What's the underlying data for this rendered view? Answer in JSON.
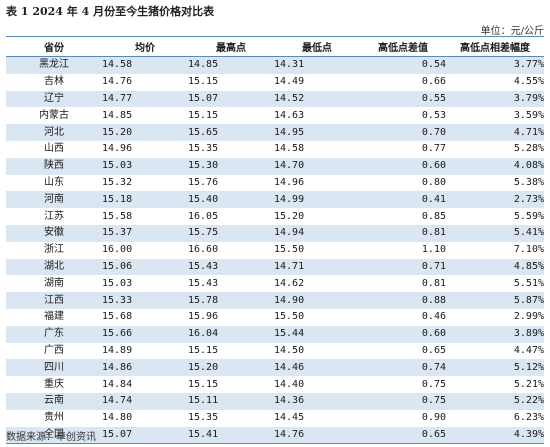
{
  "title": "表 1 2024 年 4 月份至今生猪价格对比表",
  "unit": "单位：元/公斤",
  "columns": [
    "省份",
    "均价",
    "最高点",
    "最低点",
    "高低点差值",
    "高低点相差幅度"
  ],
  "rows": [
    [
      "黑龙江",
      "14.58",
      "14.85",
      "14.31",
      "0.54",
      "3.77%"
    ],
    [
      "吉林",
      "14.76",
      "15.15",
      "14.49",
      "0.66",
      "4.55%"
    ],
    [
      "辽宁",
      "14.77",
      "15.07",
      "14.52",
      "0.55",
      "3.79%"
    ],
    [
      "内蒙古",
      "14.85",
      "15.15",
      "14.63",
      "0.53",
      "3.59%"
    ],
    [
      "河北",
      "15.20",
      "15.65",
      "14.95",
      "0.70",
      "4.71%"
    ],
    [
      "山西",
      "14.96",
      "15.35",
      "14.58",
      "0.77",
      "5.28%"
    ],
    [
      "陕西",
      "15.03",
      "15.30",
      "14.70",
      "0.60",
      "4.08%"
    ],
    [
      "山东",
      "15.32",
      "15.76",
      "14.96",
      "0.80",
      "5.38%"
    ],
    [
      "河南",
      "15.18",
      "15.40",
      "14.99",
      "0.41",
      "2.73%"
    ],
    [
      "江苏",
      "15.58",
      "16.05",
      "15.20",
      "0.85",
      "5.59%"
    ],
    [
      "安徽",
      "15.37",
      "15.75",
      "14.94",
      "0.81",
      "5.41%"
    ],
    [
      "浙江",
      "16.00",
      "16.60",
      "15.50",
      "1.10",
      "7.10%"
    ],
    [
      "湖北",
      "15.06",
      "15.43",
      "14.71",
      "0.71",
      "4.85%"
    ],
    [
      "湖南",
      "15.03",
      "15.43",
      "14.62",
      "0.81",
      "5.51%"
    ],
    [
      "江西",
      "15.33",
      "15.78",
      "14.90",
      "0.88",
      "5.87%"
    ],
    [
      "福建",
      "15.68",
      "15.96",
      "15.50",
      "0.46",
      "2.99%"
    ],
    [
      "广东",
      "15.66",
      "16.04",
      "15.44",
      "0.60",
      "3.89%"
    ],
    [
      "广西",
      "14.89",
      "15.15",
      "14.50",
      "0.65",
      "4.47%"
    ],
    [
      "四川",
      "14.86",
      "15.20",
      "14.46",
      "0.74",
      "5.12%"
    ],
    [
      "重庆",
      "14.84",
      "15.15",
      "14.40",
      "0.75",
      "5.21%"
    ],
    [
      "云南",
      "14.74",
      "15.11",
      "14.36",
      "0.75",
      "5.22%"
    ],
    [
      "贵州",
      "14.80",
      "15.35",
      "14.45",
      "0.90",
      "6.23%"
    ],
    [
      "全国",
      "15.07",
      "15.41",
      "14.76",
      "0.65",
      "4.39%"
    ]
  ],
  "source": "数据来源：卓创资讯"
}
